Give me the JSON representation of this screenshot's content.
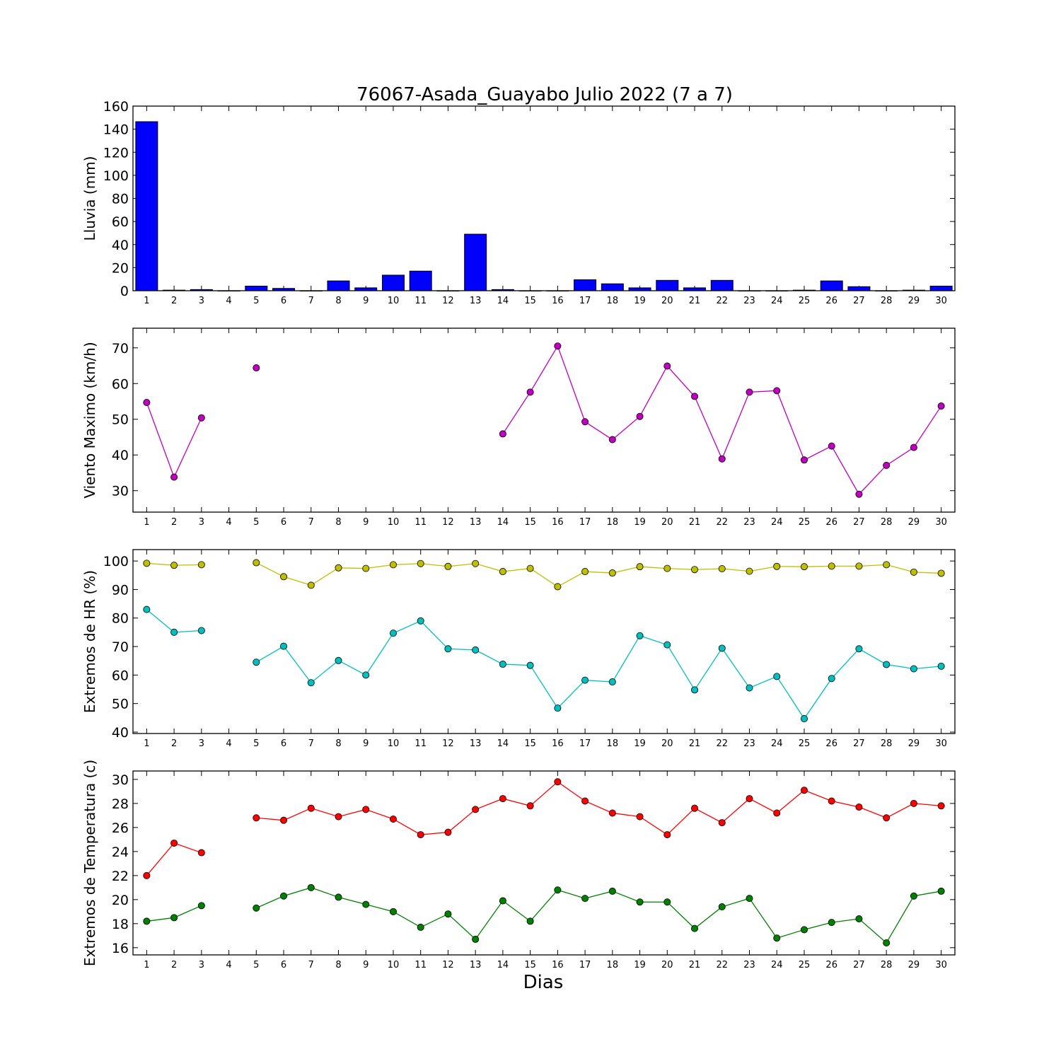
{
  "figure": {
    "title": "76067-Asada_Guayabo Julio 2022  (7 a 7)",
    "xlabel": "Dias"
  },
  "chart_data": [
    {
      "type": "bar",
      "ylabel": "Lluvia (mm)",
      "x": [
        1,
        2,
        3,
        4,
        5,
        6,
        7,
        8,
        9,
        10,
        11,
        12,
        13,
        14,
        15,
        16,
        17,
        18,
        19,
        20,
        21,
        22,
        23,
        24,
        25,
        26,
        27,
        28,
        29,
        30
      ],
      "xlim": [
        0.5,
        30.5
      ],
      "ylim": [
        0,
        160
      ],
      "yticks": [
        0,
        20,
        40,
        60,
        80,
        100,
        120,
        140,
        160
      ],
      "series": [
        {
          "color": "#0000ff",
          "values": [
            146.5,
            0.5,
            1.0,
            0.0,
            4.0,
            2.0,
            0.0,
            8.5,
            2.5,
            13.5,
            17.0,
            0.0,
            49.0,
            1.0,
            0.0,
            0.0,
            9.5,
            6.0,
            2.5,
            9.0,
            2.5,
            9.0,
            0.0,
            0.0,
            0.5,
            8.5,
            3.5,
            0.0,
            0.5,
            4.0
          ]
        }
      ]
    },
    {
      "type": "line",
      "ylabel": "Viento Maximo (km/h)",
      "x": [
        1,
        2,
        3,
        4,
        5,
        6,
        7,
        8,
        9,
        10,
        11,
        12,
        13,
        14,
        15,
        16,
        17,
        18,
        19,
        20,
        21,
        22,
        23,
        24,
        25,
        26,
        27,
        28,
        29,
        30
      ],
      "xlim": [
        0.5,
        30.5
      ],
      "ylim": [
        24,
        75.5
      ],
      "yticks": [
        30,
        40,
        50,
        60,
        70
      ],
      "series": [
        {
          "color": "#bf00bf",
          "values": [
            54.7,
            33.8,
            50.4,
            null,
            64.4,
            null,
            null,
            null,
            null,
            null,
            null,
            null,
            null,
            45.9,
            57.6,
            70.5,
            49.3,
            44.3,
            50.8,
            64.9,
            56.4,
            38.9,
            57.6,
            58.0,
            38.6,
            42.5,
            29.0,
            37.1,
            42.1,
            53.7
          ]
        }
      ]
    },
    {
      "type": "line",
      "ylabel": "Extremos de HR (%)",
      "x": [
        1,
        2,
        3,
        4,
        5,
        6,
        7,
        8,
        9,
        10,
        11,
        12,
        13,
        14,
        15,
        16,
        17,
        18,
        19,
        20,
        21,
        22,
        23,
        24,
        25,
        26,
        27,
        28,
        29,
        30
      ],
      "xlim": [
        0.5,
        30.5
      ],
      "ylim": [
        39.5,
        104
      ],
      "yticks": [
        40,
        50,
        60,
        70,
        80,
        90,
        100
      ],
      "series": [
        {
          "color": "#bfbf00",
          "values": [
            99.2,
            98.5,
            98.7,
            null,
            99.4,
            94.5,
            91.5,
            97.6,
            97.4,
            98.7,
            99.1,
            98.1,
            99.1,
            96.3,
            97.4,
            91.0,
            96.3,
            95.8,
            98.0,
            97.4,
            97.0,
            97.3,
            96.4,
            98.1,
            98.0,
            98.2,
            98.2,
            98.7,
            96.1,
            95.7
          ]
        },
        {
          "color": "#00bfbf",
          "values": [
            83.0,
            75.0,
            75.6,
            null,
            64.5,
            70.1,
            57.3,
            65.1,
            60.0,
            74.7,
            79.0,
            69.2,
            68.8,
            63.8,
            63.4,
            48.4,
            58.2,
            57.6,
            73.8,
            70.6,
            54.8,
            69.4,
            55.5,
            59.5,
            44.7,
            58.8,
            69.2,
            63.7,
            62.2,
            63.1
          ]
        }
      ]
    },
    {
      "type": "line",
      "ylabel": "Extremos de Temperatura (c)",
      "x": [
        1,
        2,
        3,
        4,
        5,
        6,
        7,
        8,
        9,
        10,
        11,
        12,
        13,
        14,
        15,
        16,
        17,
        18,
        19,
        20,
        21,
        22,
        23,
        24,
        25,
        26,
        27,
        28,
        29,
        30
      ],
      "xlim": [
        0.5,
        30.5
      ],
      "ylim": [
        15.4,
        30.7
      ],
      "yticks": [
        16,
        18,
        20,
        22,
        24,
        26,
        28,
        30
      ],
      "series": [
        {
          "color": "#ff0000",
          "values": [
            22.0,
            24.7,
            23.9,
            null,
            26.8,
            26.6,
            27.6,
            26.9,
            27.5,
            26.7,
            25.4,
            25.6,
            27.5,
            28.4,
            27.8,
            29.8,
            28.2,
            27.2,
            26.9,
            25.4,
            27.6,
            26.4,
            28.4,
            27.2,
            29.1,
            28.2,
            27.7,
            26.8,
            28.0,
            27.8
          ]
        },
        {
          "color": "#008000",
          "values": [
            18.2,
            18.5,
            19.5,
            null,
            19.3,
            20.3,
            21.0,
            20.2,
            19.6,
            19.0,
            17.7,
            18.8,
            16.7,
            19.9,
            18.2,
            20.8,
            20.1,
            20.7,
            19.8,
            19.8,
            17.6,
            19.4,
            20.1,
            16.8,
            17.5,
            18.1,
            18.4,
            16.4,
            20.3,
            20.7
          ]
        }
      ]
    }
  ]
}
